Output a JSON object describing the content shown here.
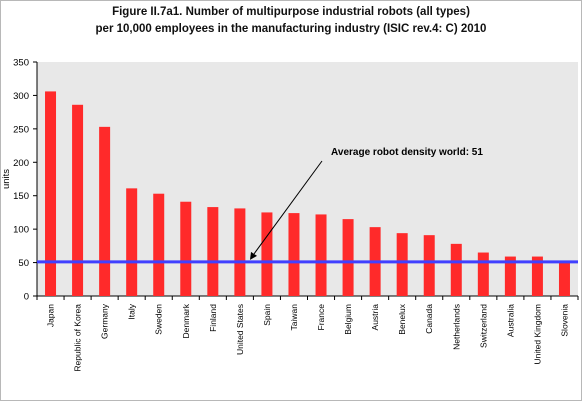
{
  "chart_data": {
    "type": "bar",
    "title_line1": "Figure II.7a1. Number of multipurpose industrial robots (all types)",
    "title_line2": "per 10,000 employees in the manufacturing industry (ISIC rev.4: C) 2010",
    "xlabel": "",
    "ylabel": "units",
    "ylim": [
      0,
      350
    ],
    "yticks": [
      0,
      50,
      100,
      150,
      200,
      250,
      300,
      350
    ],
    "categories": [
      "Japan",
      "Republic of Korea",
      "Germany",
      "Italy",
      "Sweden",
      "Denmark",
      "Finland",
      "United States",
      "Spain",
      "Taiwan",
      "France",
      "Belgium",
      "Austria",
      "Benelux",
      "Canada",
      "Netherlands",
      "Switzerland",
      "Australia",
      "United Kingdom",
      "Slovenia"
    ],
    "values": [
      306,
      286,
      253,
      161,
      153,
      141,
      133,
      131,
      125,
      124,
      122,
      115,
      103,
      94,
      91,
      78,
      65,
      59,
      59,
      52
    ],
    "bar_color": "#ff2a2a",
    "reference_line": {
      "value": 51,
      "label": "Average robot density world: 51",
      "color": "#4040ff"
    },
    "grid": false,
    "legend": "none",
    "plot_background": "#e8e8e8"
  }
}
